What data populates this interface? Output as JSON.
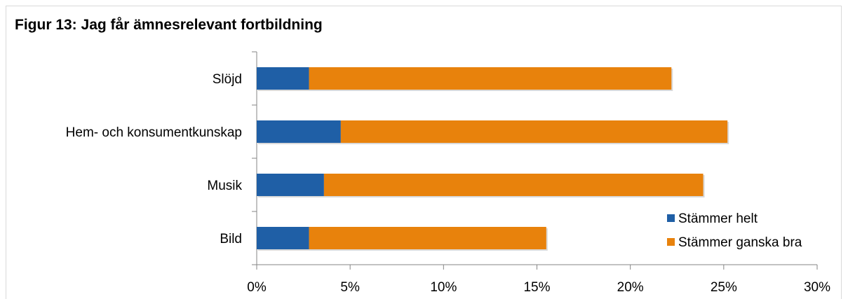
{
  "title": "Figur 13: Jag får ämnesrelevant fortbildning",
  "chart_data": {
    "type": "bar",
    "orientation": "horizontal",
    "stacked": true,
    "title": "Figur 13: Jag får ämnesrelevant fortbildning",
    "categories": [
      "Slöjd",
      "Hem- och konsumentkunskap",
      "Musik",
      "Bild"
    ],
    "series": [
      {
        "name": "Stämmer helt",
        "values": [
          2.8,
          4.5,
          3.6,
          2.8
        ],
        "color": "#1f5fa6"
      },
      {
        "name": "Stämmer ganska bra",
        "values": [
          19.4,
          20.7,
          20.3,
          12.7
        ],
        "color": "#e8820c"
      }
    ],
    "xlim": [
      0,
      30
    ],
    "xticks": [
      "0%",
      "5%",
      "10%",
      "15%",
      "20%",
      "25%",
      "30%"
    ],
    "legend_position": "bottom-right",
    "grid": false
  }
}
